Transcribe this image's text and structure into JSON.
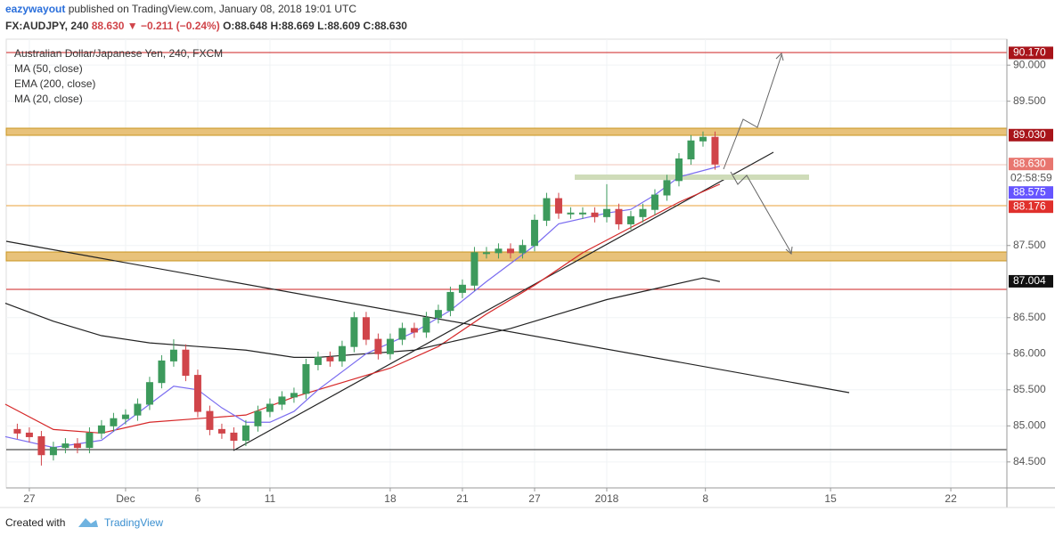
{
  "header": {
    "author": "eazywayout",
    "published": "published on TradingView.com, January 08, 2018 19:01 UTC",
    "symbol": "FX:AUDJPY, 240",
    "price": "88.630",
    "change": "▼ −0.211 (−0.24%)",
    "open": "O:88.648",
    "high": "H:88.669",
    "low": "L:88.609",
    "close": "C:88.630"
  },
  "footer": {
    "created": "Created with",
    "brand": "TradingView"
  },
  "chart_data": {
    "type": "candlestick",
    "title": "Australian Dollar/Japanese Yen, 240, FXCM",
    "xlim": [
      -0.96,
      40.63
    ],
    "ylim": [
      84.14,
      90.36
    ],
    "xticks": [
      {
        "value": 0,
        "label": "27"
      },
      {
        "value": 4,
        "label": "Dec"
      },
      {
        "value": 7,
        "label": "6"
      },
      {
        "value": 10,
        "label": "11"
      },
      {
        "value": 15,
        "label": "18"
      },
      {
        "value": 18,
        "label": "21"
      },
      {
        "value": 21,
        "label": "27"
      },
      {
        "value": 24,
        "label": "2018"
      },
      {
        "value": 28.1,
        "label": "8"
      },
      {
        "value": 33.3,
        "label": "15"
      },
      {
        "value": 38.3,
        "label": "22"
      }
    ],
    "yticks": [
      {
        "value": 84.5,
        "label": "84.500"
      },
      {
        "value": 85,
        "label": "85.000"
      },
      {
        "value": 85.5,
        "label": "85.500"
      },
      {
        "value": 86,
        "label": "86.000"
      },
      {
        "value": 86.5,
        "label": "86.500"
      },
      {
        "value": 87.5,
        "label": "87.500"
      },
      {
        "value": 89.5,
        "label": "89.500"
      },
      {
        "value": 90,
        "label": "90.000"
      }
    ],
    "grid": true,
    "up_color": "#3d9a5c",
    "down_color": "#d0454a",
    "candle_x": [
      -0.5,
      0,
      0.5,
      1,
      1.5,
      2,
      2.5,
      3,
      3.5,
      4,
      4.5,
      5,
      5.5,
      6,
      6.5,
      7,
      7.5,
      8,
      8.5,
      9,
      9.5,
      10,
      10.5,
      11,
      11.5,
      12,
      12.5,
      13,
      13.5,
      14,
      14.5,
      15,
      15.5,
      16,
      16.5,
      17,
      17.5,
      18,
      18.5,
      19,
      19.5,
      20,
      20.5,
      21,
      21.5,
      22,
      22.5,
      23,
      23.5,
      24,
      24.5,
      25,
      25.5,
      26,
      26.5,
      27,
      27.5,
      28,
      28.5
    ],
    "candles": [
      [
        84.95,
        85.03,
        84.82,
        84.9
      ],
      [
        84.9,
        84.98,
        84.77,
        84.85
      ],
      [
        84.85,
        84.93,
        84.45,
        84.6
      ],
      [
        84.6,
        84.78,
        84.52,
        84.7
      ],
      [
        84.7,
        84.83,
        84.62,
        84.75
      ],
      [
        84.75,
        84.83,
        84.62,
        84.7
      ],
      [
        84.7,
        84.98,
        84.62,
        84.9
      ],
      [
        84.9,
        85.08,
        84.82,
        85.0
      ],
      [
        85.0,
        85.18,
        84.92,
        85.1
      ],
      [
        85.1,
        85.23,
        85.02,
        85.15
      ],
      [
        85.15,
        85.38,
        85.07,
        85.3
      ],
      [
        85.3,
        85.68,
        85.22,
        85.6
      ],
      [
        85.6,
        85.98,
        85.52,
        85.9
      ],
      [
        85.9,
        86.2,
        85.82,
        86.05
      ],
      [
        86.05,
        86.13,
        85.62,
        85.7
      ],
      [
        85.7,
        85.78,
        85.12,
        85.2
      ],
      [
        85.2,
        85.28,
        84.87,
        84.95
      ],
      [
        84.95,
        85.03,
        84.82,
        84.9
      ],
      [
        84.9,
        84.98,
        84.68,
        84.8
      ],
      [
        84.8,
        85.08,
        84.72,
        85.0
      ],
      [
        85.0,
        85.28,
        84.92,
        85.2
      ],
      [
        85.2,
        85.38,
        85.12,
        85.3
      ],
      [
        85.3,
        85.48,
        85.22,
        85.4
      ],
      [
        85.4,
        85.53,
        85.32,
        85.45
      ],
      [
        85.45,
        85.93,
        85.37,
        85.85
      ],
      [
        85.85,
        86.03,
        85.77,
        85.95
      ],
      [
        85.95,
        86.03,
        85.82,
        85.9
      ],
      [
        85.9,
        86.18,
        85.82,
        86.1
      ],
      [
        86.1,
        86.58,
        86.02,
        86.5
      ],
      [
        86.5,
        86.58,
        86.12,
        86.2
      ],
      [
        86.2,
        86.28,
        85.92,
        86.0
      ],
      [
        86.0,
        86.28,
        85.92,
        86.2
      ],
      [
        86.2,
        86.43,
        86.12,
        86.35
      ],
      [
        86.35,
        86.43,
        86.22,
        86.3
      ],
      [
        86.3,
        86.58,
        86.22,
        86.5
      ],
      [
        86.5,
        86.68,
        86.42,
        86.6
      ],
      [
        86.6,
        86.93,
        86.52,
        86.85
      ],
      [
        86.85,
        87.03,
        86.77,
        86.95
      ],
      [
        86.95,
        87.48,
        86.87,
        87.4
      ],
      [
        87.4,
        87.48,
        87.32,
        87.4
      ],
      [
        87.4,
        87.53,
        87.32,
        87.45
      ],
      [
        87.45,
        87.53,
        87.32,
        87.4
      ],
      [
        87.4,
        87.58,
        87.32,
        87.5
      ],
      [
        87.5,
        87.93,
        87.42,
        87.85
      ],
      [
        87.85,
        88.23,
        87.77,
        88.15
      ],
      [
        88.15,
        88.23,
        87.87,
        87.95
      ],
      [
        87.95,
        88.03,
        87.87,
        87.95
      ],
      [
        87.95,
        88.03,
        87.87,
        87.95
      ],
      [
        87.95,
        88.03,
        87.82,
        87.9
      ],
      [
        87.9,
        88.35,
        87.82,
        88.0
      ],
      [
        88.0,
        88.08,
        87.72,
        87.8
      ],
      [
        87.8,
        87.98,
        87.72,
        87.9
      ],
      [
        87.9,
        88.08,
        87.82,
        88.0
      ],
      [
        88.0,
        88.28,
        87.92,
        88.2
      ],
      [
        88.2,
        88.48,
        88.12,
        88.4
      ],
      [
        88.4,
        88.78,
        88.32,
        88.7
      ],
      [
        88.7,
        89.03,
        88.62,
        88.95
      ],
      [
        88.95,
        89.08,
        88.87,
        89.0
      ],
      [
        89.0,
        89.08,
        88.55,
        88.63
      ]
    ],
    "series": [
      {
        "name": "MA (50, close)",
        "color": "#d62728",
        "x": [
          -1,
          1,
          3,
          5,
          7,
          9,
          11,
          13,
          15,
          17,
          19,
          21,
          23,
          25,
          27,
          28.7
        ],
        "values": [
          85.3,
          84.95,
          84.9,
          85.05,
          85.1,
          85.15,
          85.4,
          85.6,
          85.8,
          86.1,
          86.55,
          86.95,
          87.4,
          87.75,
          88.1,
          88.35
        ]
      },
      {
        "name": "EMA (200, close)",
        "color": "#222222",
        "x": [
          -1,
          1,
          3,
          5,
          7,
          9,
          11,
          12,
          14,
          16,
          18,
          20,
          22,
          24,
          26,
          28,
          28.7
        ],
        "values": [
          86.7,
          86.45,
          86.25,
          86.15,
          86.1,
          86.05,
          85.95,
          85.95,
          86.0,
          86.05,
          86.2,
          86.35,
          86.55,
          86.75,
          86.9,
          87.05,
          87.0
        ]
      },
      {
        "name": "MA (20, close)",
        "color": "#7a6cf0",
        "x": [
          -1,
          1,
          3,
          5,
          6,
          7,
          8,
          9,
          10,
          11,
          12,
          13,
          14,
          16,
          17.5,
          19,
          21,
          22,
          24,
          25,
          26,
          27,
          28.7
        ],
        "values": [
          84.85,
          84.7,
          84.8,
          85.3,
          85.55,
          85.5,
          85.25,
          85.05,
          85.05,
          85.2,
          85.5,
          85.75,
          86.0,
          86.3,
          86.6,
          87.0,
          87.5,
          87.8,
          87.95,
          88.0,
          88.2,
          88.45,
          88.6
        ]
      }
    ],
    "price_tags": [
      {
        "value": 90.17,
        "label": "90.170",
        "color": "#a8141a"
      },
      {
        "value": 89.03,
        "label": "89.030",
        "color": "#a8141a"
      },
      {
        "value": 88.63,
        "label": "88.630",
        "color": "#e8766f"
      },
      {
        "value": 88.575,
        "label": "88.575",
        "color": "#6655ff"
      },
      {
        "value": 88.176,
        "label": "88.176",
        "color": "#e0302c"
      },
      {
        "value": 87.004,
        "label": "87.004",
        "color": "#111111"
      }
    ],
    "countdown": "02:58:59"
  }
}
